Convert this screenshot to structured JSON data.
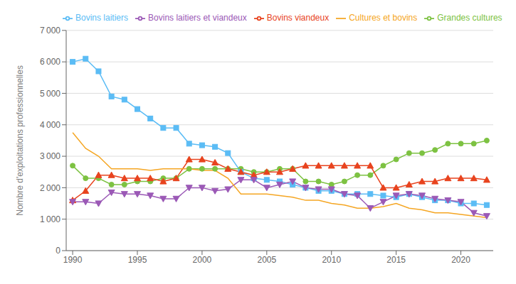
{
  "chart_data": {
    "type": "line",
    "ylabel": "Nombre d'exploitations professionnelles",
    "x": [
      1990,
      1991,
      1992,
      1993,
      1994,
      1995,
      1996,
      1997,
      1998,
      1999,
      2000,
      2001,
      2002,
      2003,
      2004,
      2005,
      2006,
      2007,
      2008,
      2009,
      2010,
      2011,
      2012,
      2013,
      2014,
      2015,
      2016,
      2017,
      2018,
      2019,
      2020,
      2021,
      2022
    ],
    "xlim": [
      1989.5,
      2022.5
    ],
    "xticks": [
      1990,
      1995,
      2000,
      2005,
      2010,
      2015,
      2020
    ],
    "ylim": [
      0,
      7000
    ],
    "yticks": [
      0,
      {
        "value": 1000,
        "label": "1 000"
      },
      {
        "value": 2000,
        "label": "2 000"
      },
      {
        "value": 3000,
        "label": "3 000"
      },
      {
        "value": 4000,
        "label": "4 000"
      },
      {
        "value": 5000,
        "label": "5 000"
      },
      {
        "value": 6000,
        "label": "6 000"
      },
      {
        "value": 7000,
        "label": "7 000"
      }
    ],
    "grid": "y",
    "legend": "top-left",
    "series": [
      {
        "name": "Grandes cultures",
        "color": "#7dc242",
        "marker": "circle",
        "values": [
          2700,
          2300,
          2300,
          2100,
          2100,
          2200,
          2200,
          2300,
          2300,
          2600,
          2600,
          2600,
          2600,
          2600,
          2500,
          2500,
          2600,
          2600,
          2200,
          2200,
          2100,
          2200,
          2400,
          2400,
          2700,
          2900,
          3100,
          3100,
          3200,
          3400,
          3400,
          3400,
          3500
        ]
      },
      {
        "name": "Bovins laitiers",
        "color": "#5bbcf5",
        "marker": "square",
        "values": [
          6000,
          6100,
          5700,
          4900,
          4800,
          4500,
          4200,
          3900,
          3900,
          3400,
          3350,
          3300,
          3100,
          2500,
          2300,
          2250,
          2200,
          2100,
          2000,
          1900,
          1900,
          1800,
          1800,
          1800,
          1750,
          1700,
          1800,
          1700,
          1600,
          1600,
          1500,
          1500,
          1450
        ]
      },
      {
        "name": "Bovins viandeux",
        "color": "#e8431e",
        "marker": "triangle-up",
        "values": [
          1600,
          1900,
          2400,
          2400,
          2300,
          2300,
          2300,
          2200,
          2300,
          2900,
          2900,
          2800,
          2600,
          2500,
          2400,
          2500,
          2500,
          2600,
          2700,
          2700,
          2700,
          2700,
          2700,
          2700,
          2000,
          2000,
          2100,
          2200,
          2200,
          2300,
          2300,
          2300,
          2250
        ]
      },
      {
        "name": "Bovins laitiers et viandeux",
        "color": "#9b59b6",
        "marker": "triangle-down",
        "values": [
          1550,
          1550,
          1500,
          1850,
          1800,
          1800,
          1750,
          1650,
          1650,
          2000,
          2000,
          1900,
          1950,
          2250,
          2250,
          2000,
          2100,
          2200,
          2000,
          1950,
          1950,
          1800,
          1750,
          1350,
          1550,
          1750,
          1800,
          1750,
          1650,
          1600,
          1550,
          1200,
          1100
        ]
      },
      {
        "name": "Cultures et bovins",
        "color": "#f5a623",
        "marker": "none",
        "values": [
          3750,
          3250,
          3000,
          2600,
          2600,
          2600,
          2550,
          2600,
          2600,
          2600,
          2550,
          2550,
          2300,
          1800,
          1800,
          1800,
          1750,
          1700,
          1600,
          1600,
          1500,
          1450,
          1350,
          1350,
          1400,
          1500,
          1350,
          1300,
          1200,
          1200,
          1150,
          1100,
          1050
        ]
      }
    ]
  }
}
